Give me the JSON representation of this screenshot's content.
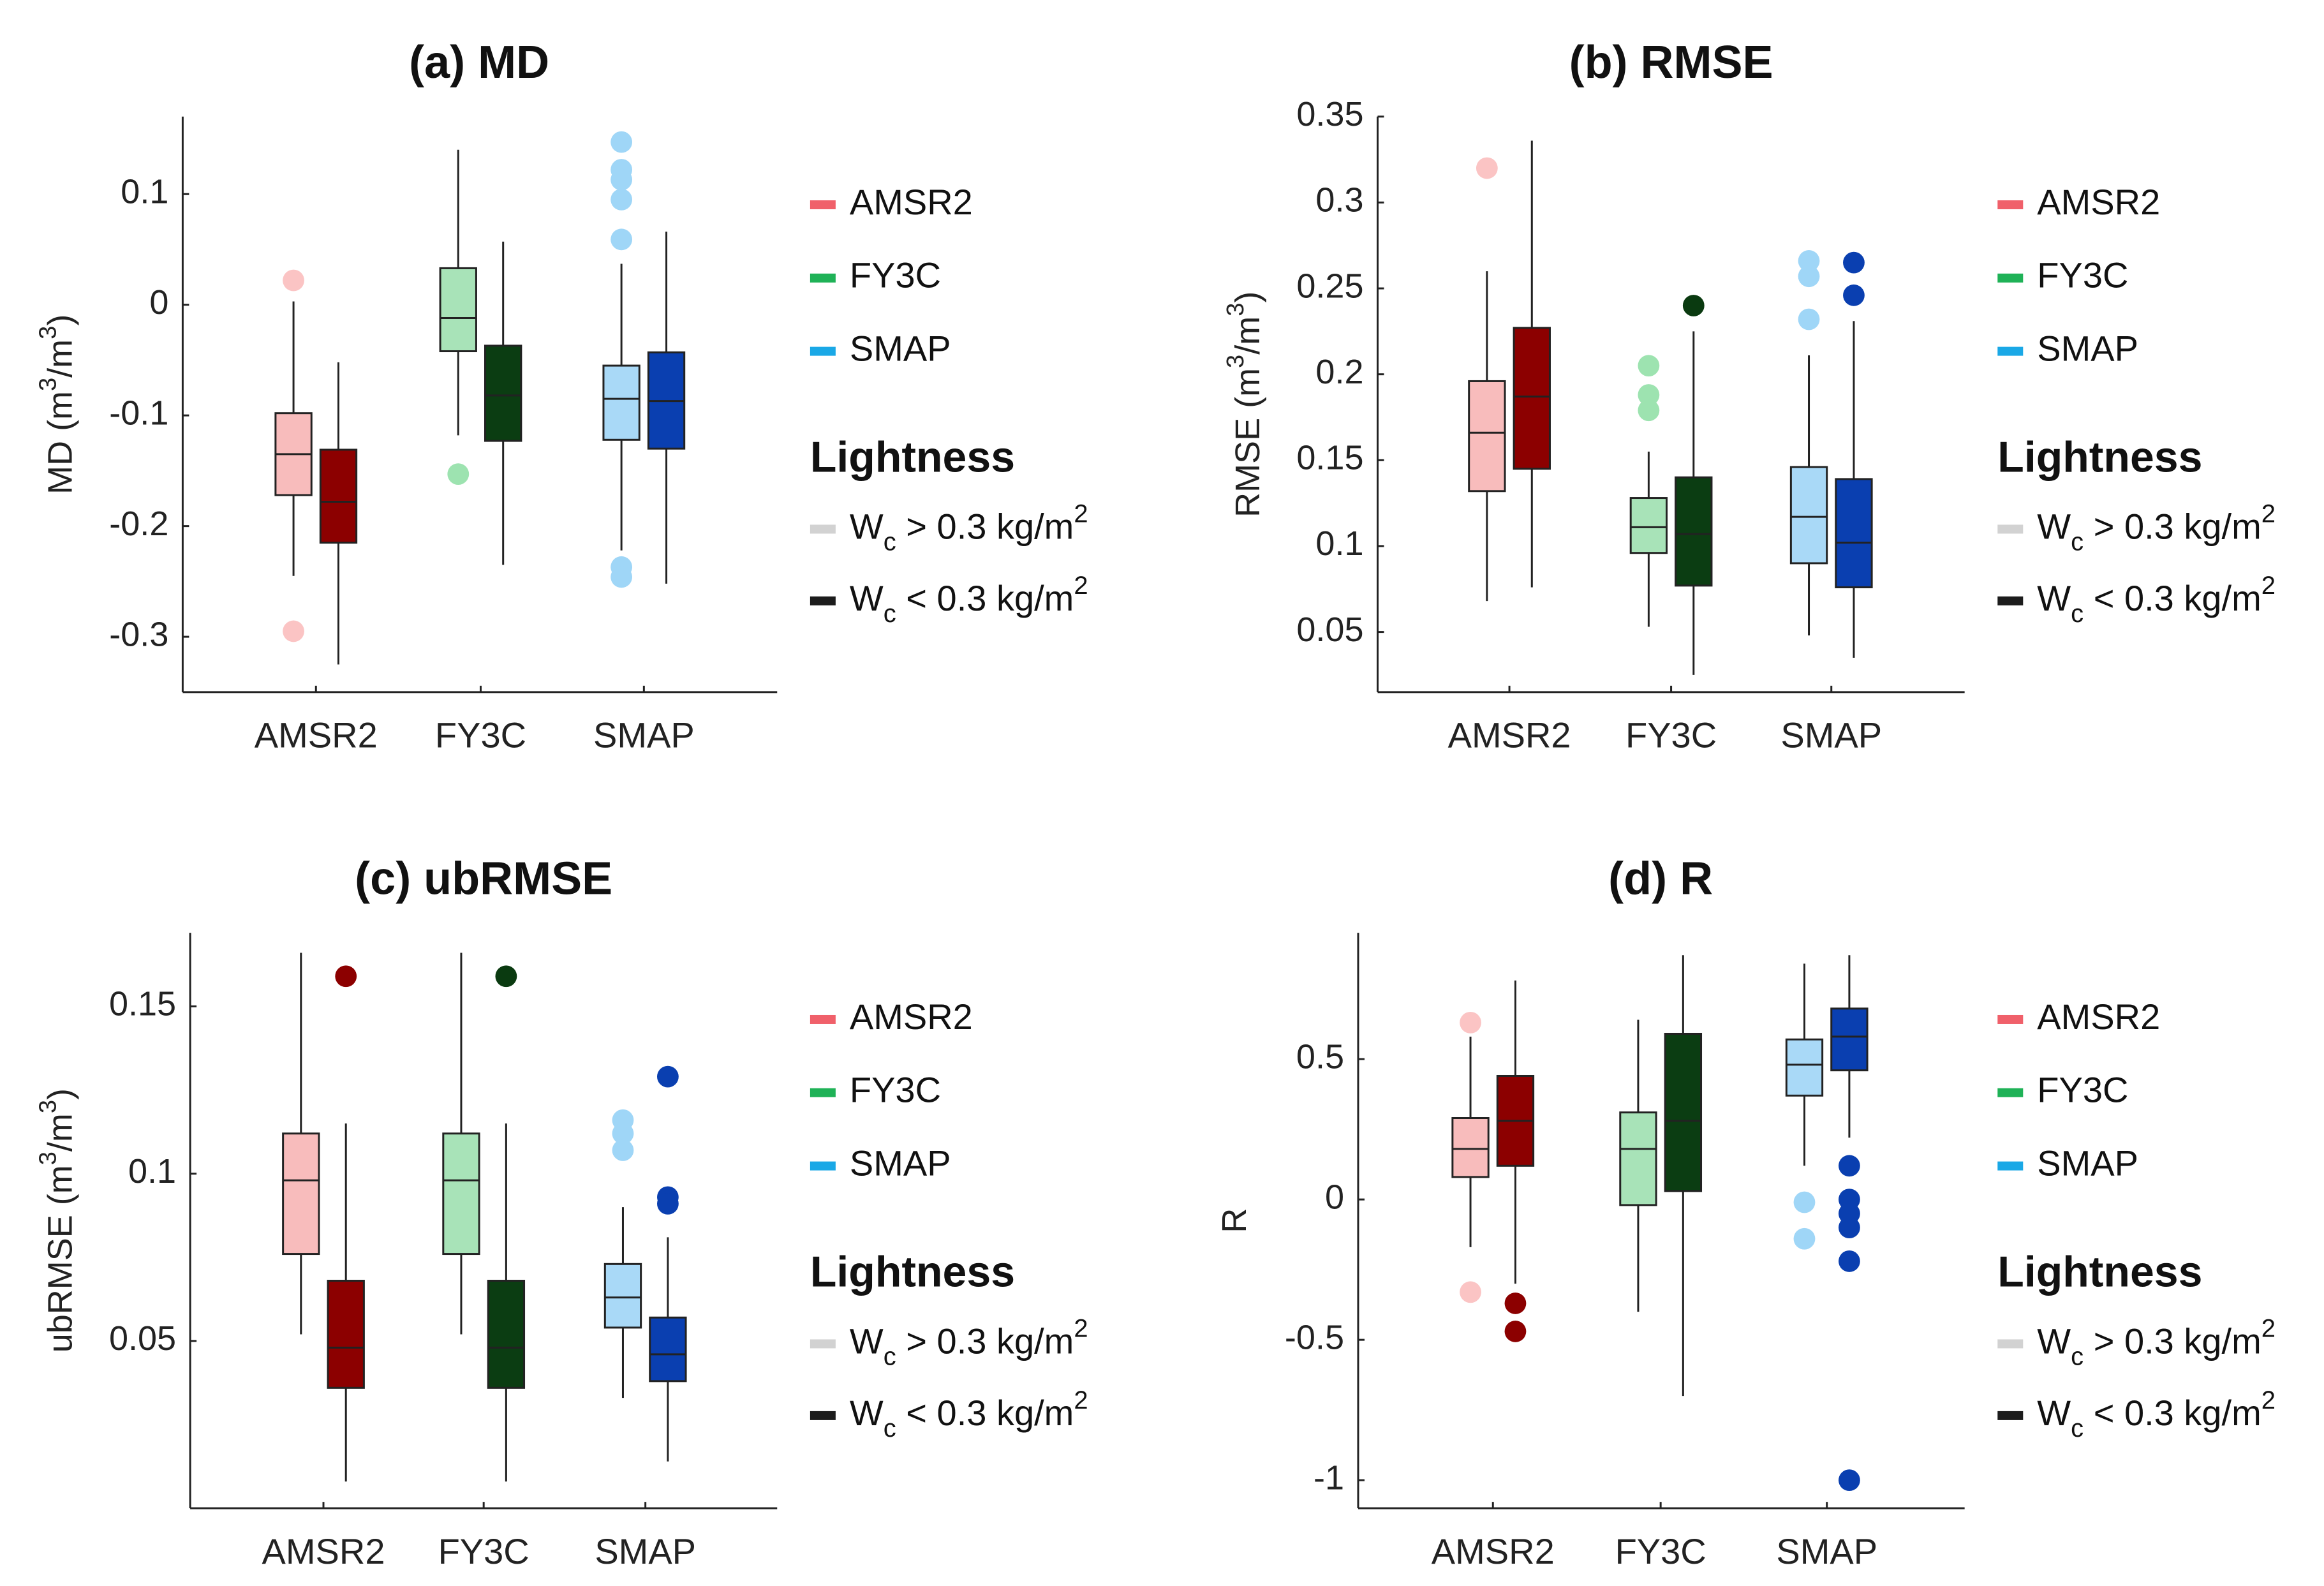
{
  "chart_data": [
    {
      "type": "box",
      "panel_id": "a",
      "title": "(a) MD",
      "ylabel_main": "MD (m",
      "ylabel_sup1": "3",
      "ylabel_mid": "/m",
      "ylabel_sup2": "3",
      "ylabel_end": ")",
      "ylim": [
        -0.35,
        0.17
      ],
      "yticks": [
        0.1,
        0,
        -0.1,
        -0.2,
        -0.3
      ],
      "ytick_labels": [
        "0.1",
        "0",
        "-0.1",
        "-0.2",
        "-0.3"
      ],
      "categories": [
        "AMSR2",
        "FY3C",
        "SMAP"
      ],
      "boxes": [
        {
          "category": "AMSR2",
          "group": "light",
          "whisker_low": -0.245,
          "q1": -0.172,
          "median": -0.135,
          "q3": -0.098,
          "whisker_high": 0.003,
          "outliers": [
            0.022,
            -0.295
          ]
        },
        {
          "category": "AMSR2",
          "group": "dark",
          "whisker_low": -0.325,
          "q1": -0.215,
          "median": -0.178,
          "q3": -0.131,
          "whisker_high": -0.052,
          "outliers": []
        },
        {
          "category": "FY3C",
          "group": "light",
          "whisker_low": -0.118,
          "q1": -0.042,
          "median": -0.012,
          "q3": 0.033,
          "whisker_high": 0.14,
          "outliers": [
            -0.153
          ]
        },
        {
          "category": "FY3C",
          "group": "dark",
          "whisker_low": -0.235,
          "q1": -0.123,
          "median": -0.082,
          "q3": -0.037,
          "whisker_high": 0.057,
          "outliers": []
        },
        {
          "category": "SMAP",
          "group": "light",
          "whisker_low": -0.222,
          "q1": -0.122,
          "median": -0.085,
          "q3": -0.055,
          "whisker_high": 0.037,
          "outliers": [
            0.147,
            0.122,
            0.113,
            0.095,
            0.059,
            -0.237,
            -0.246
          ]
        },
        {
          "category": "SMAP",
          "group": "dark",
          "whisker_low": -0.252,
          "q1": -0.13,
          "median": -0.087,
          "q3": -0.043,
          "whisker_high": 0.066,
          "outliers": []
        }
      ]
    },
    {
      "type": "box",
      "panel_id": "b",
      "title": "(b) RMSE",
      "ylabel_main": "RMSE (m",
      "ylabel_sup1": "3",
      "ylabel_mid": "/m",
      "ylabel_sup2": "3",
      "ylabel_end": ")",
      "ylim": [
        0.015,
        0.35
      ],
      "yticks": [
        0.35,
        0.3,
        0.25,
        0.2,
        0.15,
        0.1,
        0.05
      ],
      "ytick_labels": [
        "0.35",
        "0.3",
        "0.25",
        "0.2",
        "0.15",
        "0.1",
        "0.05"
      ],
      "categories": [
        "AMSR2",
        "FY3C",
        "SMAP"
      ],
      "boxes": [
        {
          "category": "AMSR2",
          "group": "light",
          "whisker_low": 0.068,
          "q1": 0.132,
          "median": 0.166,
          "q3": 0.196,
          "whisker_high": 0.26,
          "outliers": [
            0.32
          ]
        },
        {
          "category": "AMSR2",
          "group": "dark",
          "whisker_low": 0.076,
          "q1": 0.145,
          "median": 0.187,
          "q3": 0.227,
          "whisker_high": 0.336,
          "outliers": []
        },
        {
          "category": "FY3C",
          "group": "light",
          "whisker_low": 0.053,
          "q1": 0.096,
          "median": 0.111,
          "q3": 0.128,
          "whisker_high": 0.155,
          "outliers": [
            0.205,
            0.188,
            0.179
          ]
        },
        {
          "category": "FY3C",
          "group": "dark",
          "whisker_low": 0.025,
          "q1": 0.077,
          "median": 0.107,
          "q3": 0.14,
          "whisker_high": 0.225,
          "outliers": [
            0.24
          ]
        },
        {
          "category": "SMAP",
          "group": "light",
          "whisker_low": 0.048,
          "q1": 0.09,
          "median": 0.117,
          "q3": 0.146,
          "whisker_high": 0.211,
          "outliers": [
            0.266,
            0.257,
            0.232
          ]
        },
        {
          "category": "SMAP",
          "group": "dark",
          "whisker_low": 0.035,
          "q1": 0.076,
          "median": 0.102,
          "q3": 0.139,
          "whisker_high": 0.231,
          "outliers": [
            0.265,
            0.246
          ]
        }
      ]
    },
    {
      "type": "box",
      "panel_id": "c",
      "title": "(c) ubRMSE",
      "ylabel_main": "ubRMSE (m",
      "ylabel_sup1": "3",
      "ylabel_mid": "/m",
      "ylabel_sup2": "3",
      "ylabel_end": ")",
      "ylim": [
        0,
        0.172
      ],
      "yticks": [
        0.15,
        0.1,
        0.05
      ],
      "ytick_labels": [
        "0.15",
        "0.1",
        "0.05"
      ],
      "categories": [
        "AMSR2",
        "FY3C",
        "SMAP"
      ],
      "boxes": [
        {
          "category": "AMSR2",
          "group": "light",
          "whisker_low": 0.052,
          "q1": 0.076,
          "median": 0.098,
          "q3": 0.112,
          "whisker_high": 0.166,
          "outliers": []
        },
        {
          "category": "AMSR2",
          "group": "dark",
          "whisker_low": 0.008,
          "q1": 0.036,
          "median": 0.048,
          "q3": 0.068,
          "whisker_high": 0.115,
          "outliers": [
            0.159
          ]
        },
        {
          "category": "FY3C",
          "group": "light",
          "whisker_low": 0.052,
          "q1": 0.076,
          "median": 0.098,
          "q3": 0.112,
          "whisker_high": 0.166,
          "outliers": []
        },
        {
          "category": "FY3C",
          "group": "dark",
          "whisker_low": 0.008,
          "q1": 0.036,
          "median": 0.048,
          "q3": 0.068,
          "whisker_high": 0.115,
          "outliers": [
            0.159
          ]
        },
        {
          "category": "SMAP",
          "group": "light",
          "whisker_low": 0.033,
          "q1": 0.054,
          "median": 0.063,
          "q3": 0.073,
          "whisker_high": 0.09,
          "outliers": [
            0.116,
            0.112,
            0.107
          ]
        },
        {
          "category": "SMAP",
          "group": "dark",
          "whisker_low": 0.014,
          "q1": 0.038,
          "median": 0.046,
          "q3": 0.057,
          "whisker_high": 0.081,
          "outliers": [
            0.129,
            0.093,
            0.091
          ]
        }
      ]
    },
    {
      "type": "box",
      "panel_id": "d",
      "title": "(d) R",
      "ylabel_main": "R",
      "ylabel_sup1": "",
      "ylabel_mid": "",
      "ylabel_sup2": "",
      "ylabel_end": "",
      "ylim": [
        -1.1,
        0.95
      ],
      "yticks": [
        0.5,
        0,
        -0.5,
        -1
      ],
      "ytick_labels": [
        "0.5",
        "0",
        "-0.5",
        "-1"
      ],
      "categories": [
        "AMSR2",
        "FY3C",
        "SMAP"
      ],
      "boxes": [
        {
          "category": "AMSR2",
          "group": "light",
          "whisker_low": -0.17,
          "q1": 0.08,
          "median": 0.18,
          "q3": 0.29,
          "whisker_high": 0.58,
          "outliers": [
            0.63,
            -0.33
          ]
        },
        {
          "category": "AMSR2",
          "group": "dark",
          "whisker_low": -0.3,
          "q1": 0.12,
          "median": 0.28,
          "q3": 0.44,
          "whisker_high": 0.78,
          "outliers": [
            -0.37,
            -0.47
          ]
        },
        {
          "category": "FY3C",
          "group": "light",
          "whisker_low": -0.4,
          "q1": -0.02,
          "median": 0.18,
          "q3": 0.31,
          "whisker_high": 0.64,
          "outliers": []
        },
        {
          "category": "FY3C",
          "group": "dark",
          "whisker_low": -0.7,
          "q1": 0.03,
          "median": 0.28,
          "q3": 0.59,
          "whisker_high": 0.87,
          "outliers": []
        },
        {
          "category": "SMAP",
          "group": "light",
          "whisker_low": 0.12,
          "q1": 0.37,
          "median": 0.48,
          "q3": 0.57,
          "whisker_high": 0.84,
          "outliers": [
            -0.01,
            -0.14
          ]
        },
        {
          "category": "SMAP",
          "group": "dark",
          "whisker_low": 0.22,
          "q1": 0.46,
          "median": 0.58,
          "q3": 0.68,
          "whisker_high": 0.87,
          "outliers": [
            0.12,
            0.0,
            -0.05,
            -0.1,
            -0.22,
            -1.0
          ]
        }
      ]
    }
  ],
  "legend": {
    "entries": [
      {
        "label": "AMSR2",
        "color": "#f0606a"
      },
      {
        "label": "FY3C",
        "color": "#1fb257"
      },
      {
        "label": "SMAP",
        "color": "#1aa8e6"
      }
    ],
    "lightness_title": "Lightness",
    "wc_symbol": "W",
    "wc_sub": "c",
    "light_rel": " > 0.3 kg/m",
    "dark_rel": " < 0.3 kg/m",
    "unit_sup": "2",
    "light_swatch": "#d2d2d2",
    "dark_swatch": "#1c1c1c"
  },
  "colors": {
    "AMSR2": {
      "light": "#f8bcbc",
      "dark": "#8c0000",
      "light_outlier": "#fbc4c4",
      "dark_outlier": "#8c0000"
    },
    "FY3C": {
      "light": "#a8e3b8",
      "dark": "#0b3d12",
      "light_outlier": "#9de3b0",
      "dark_outlier": "#0a3a10"
    },
    "SMAP": {
      "light": "#a9d9f7",
      "dark": "#0a3fb0",
      "light_outlier": "#9fd6f7",
      "dark_outlier": "#0a3fb0"
    }
  }
}
